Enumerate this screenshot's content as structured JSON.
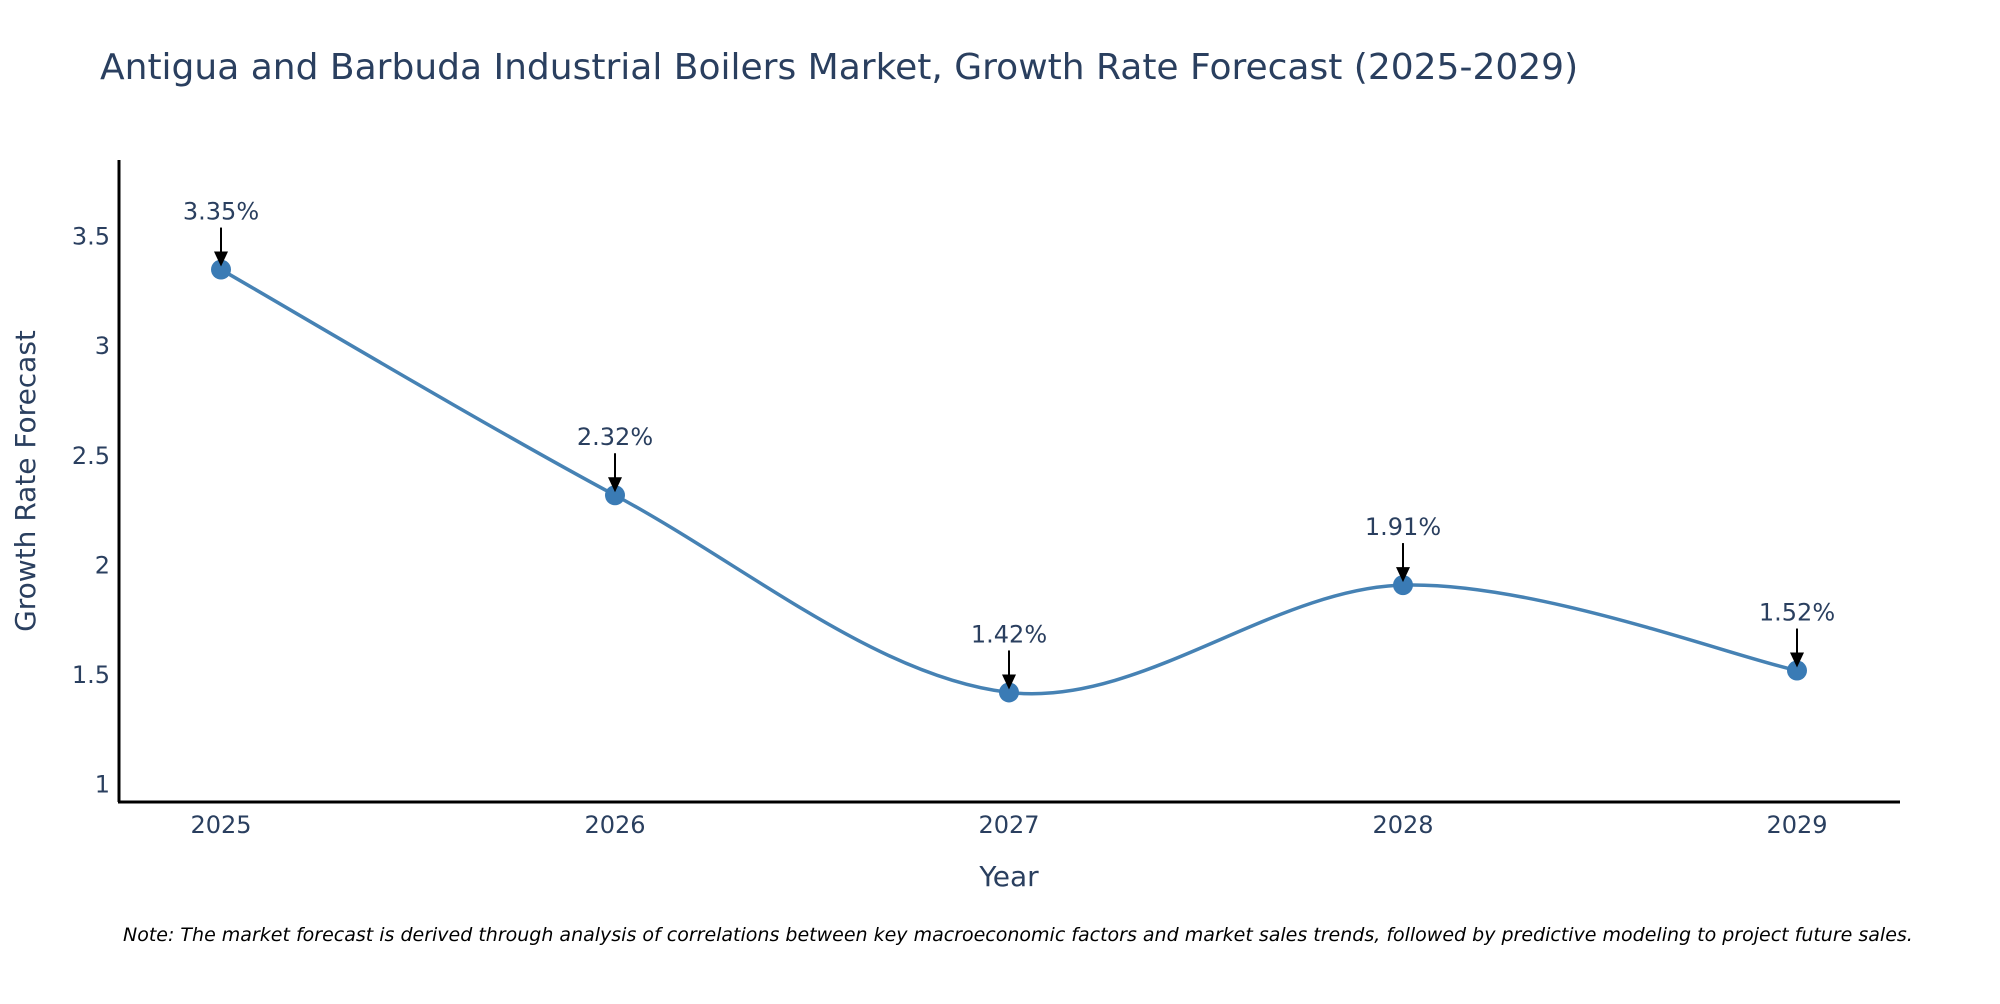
{
  "chart_data": {
    "type": "line",
    "title": "Antigua and Barbuda Industrial Boilers Market, Growth Rate Forecast (2025-2029)",
    "xlabel": "Year",
    "ylabel": "Growth Rate Forecast",
    "categories": [
      "2025",
      "2026",
      "2027",
      "2028",
      "2029"
    ],
    "series": [
      {
        "name": "Growth Rate Forecast",
        "values": [
          3.35,
          2.32,
          1.42,
          1.91,
          1.52
        ],
        "labels": [
          "3.35%",
          "2.32%",
          "1.42%",
          "1.91%",
          "1.52%"
        ]
      }
    ],
    "ylim": [
      0.92,
      3.85
    ],
    "yticks": [
      1,
      1.5,
      2,
      2.5,
      3,
      3.5
    ],
    "ytick_labels": [
      "1",
      "1.5",
      "2",
      "2.5",
      "3",
      "3.5"
    ],
    "grid": false,
    "line_color": "#4682b4",
    "marker_color": "#3a7bb5",
    "note": "Note: The market forecast is derived through analysis of correlations between key macroeconomic factors and market sales trends, followed by predictive modeling to project future sales."
  }
}
